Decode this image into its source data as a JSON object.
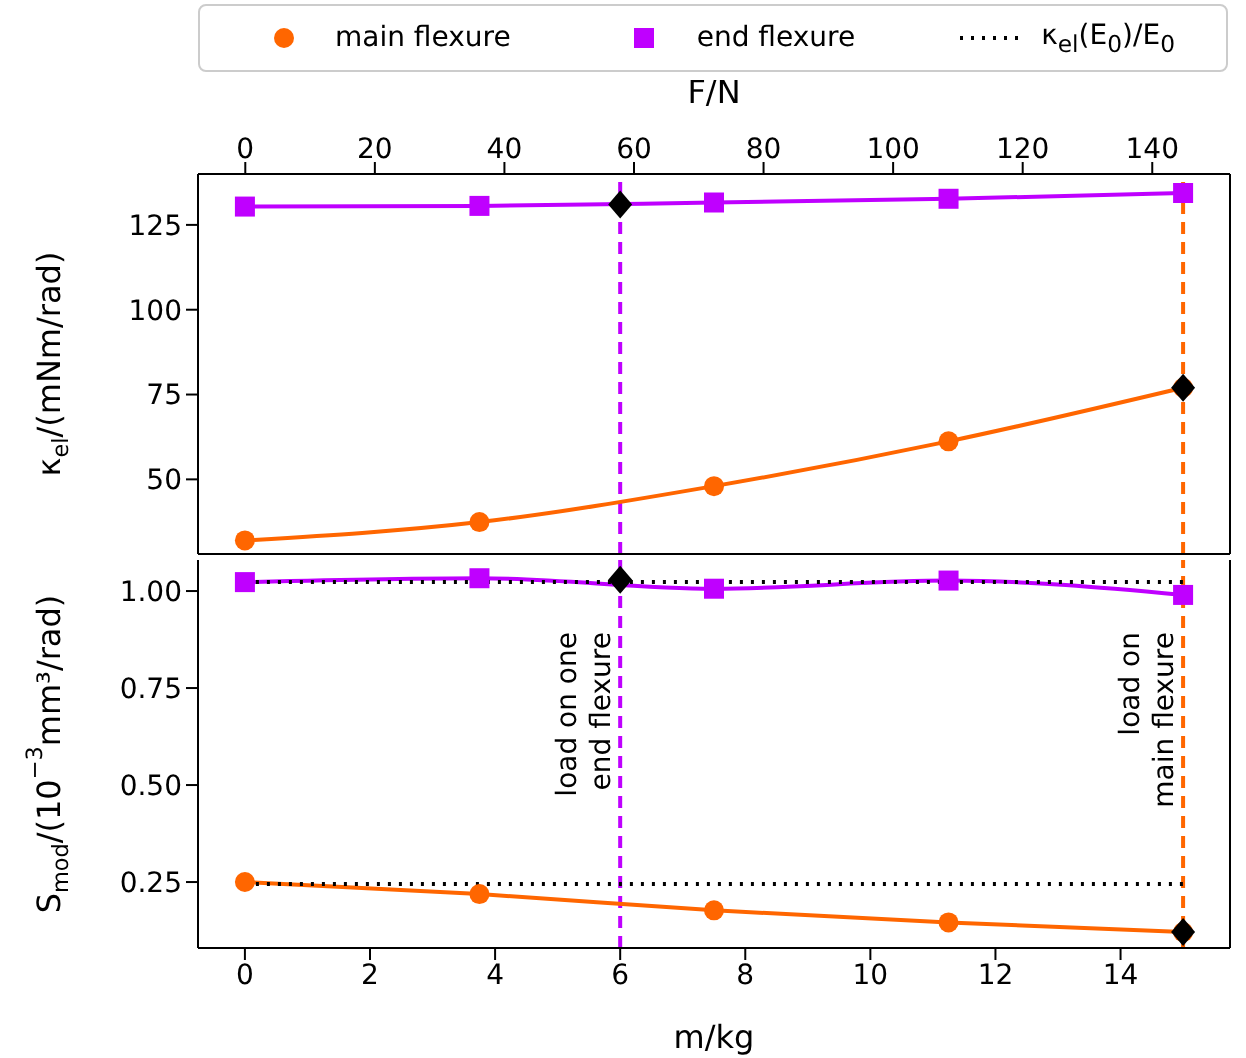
{
  "chart_data": [
    {
      "type": "line",
      "ylabel": "κ$_{el}$/(mNm/rad)",
      "x2label": "F/N",
      "xlim": [
        -0.75,
        15.75
      ],
      "x2lim": [
        -7.3,
        152
      ],
      "x2ticks": [
        0,
        20,
        40,
        60,
        80,
        100,
        120,
        140
      ],
      "ylim": [
        28,
        140
      ],
      "yticks": [
        50,
        75,
        100,
        125
      ],
      "tick_labels": "y",
      "legend": "top",
      "grid": false,
      "series": [
        {
          "name": "main flexure",
          "color": "#ff6600",
          "marker": "circle",
          "x": [
            0,
            3.75,
            7.5,
            11.25,
            15
          ],
          "values": [
            32,
            37.4,
            48,
            61.2,
            77
          ]
        },
        {
          "name": "end flexure",
          "color": "#bf00ff",
          "marker": "square",
          "x": [
            0,
            3.75,
            7.5,
            11.25,
            15
          ],
          "values": [
            130.4,
            130.6,
            131.6,
            132.7,
            134.4
          ]
        },
        {
          "type": "scatter",
          "color": "#000000",
          "marker": "diamond",
          "x": [
            6,
            15
          ],
          "values": [
            131,
            77
          ]
        }
      ],
      "ref_lines": [
        {
          "axis": "x",
          "value": 6,
          "color": "#bf00ff",
          "line_style": "dashed"
        },
        {
          "axis": "x",
          "value": 15,
          "color": "#ff6600",
          "line_style": "dashed"
        }
      ]
    },
    {
      "type": "line",
      "ylabel": "S$_{mod}$/(10$^{−3}$mm³/rad)",
      "xlabel": "m/kg",
      "xlim": [
        -0.75,
        15.75
      ],
      "xticks": [
        0,
        2,
        4,
        6,
        8,
        10,
        12,
        14
      ],
      "ylim": [
        0.08,
        1.08
      ],
      "yticks": [
        0.25,
        {
          "value": 0.5,
          "label": "0.50"
        },
        0.75,
        {
          "value": 1,
          "label": "1.00"
        }
      ],
      "legend": "top",
      "grid": false,
      "series": [
        {
          "color": "#ff6600",
          "marker": "circle",
          "x": [
            0,
            3.75,
            7.5,
            11.25,
            15
          ],
          "values": [
            0.25,
            0.219,
            0.177,
            0.146,
            0.121
          ]
        },
        {
          "color": "#bf00ff",
          "marker": "square",
          "x": [
            0,
            3.75,
            7.5,
            11.25,
            15
          ],
          "values": [
            1.023,
            1.033,
            1.006,
            1.027,
            0.99
          ]
        },
        {
          "name": "κ$_{el}$(E$_{0}$)/E$_{0}$",
          "color": "#000000",
          "marker": "none",
          "line_style": "dotted",
          "x": [
            0,
            15
          ],
          "values": [
            1.023,
            1.023
          ]
        },
        {
          "color": "#000000",
          "marker": "none",
          "line_style": "dotted",
          "x": [
            0,
            15
          ],
          "values": [
            0.245,
            0.245
          ]
        },
        {
          "type": "scatter",
          "color": "#000000",
          "marker": "diamond",
          "x": [
            6,
            15
          ],
          "values": [
            1.029,
            0.121
          ]
        }
      ],
      "ref_lines": [
        {
          "axis": "x",
          "value": 6,
          "color": "#bf00ff",
          "line_style": "dashed",
          "label": "load on one\nend flexure"
        },
        {
          "axis": "x",
          "value": 15,
          "color": "#ff6600",
          "line_style": "dashed",
          "label": "load on\nmain flexure"
        }
      ]
    }
  ]
}
